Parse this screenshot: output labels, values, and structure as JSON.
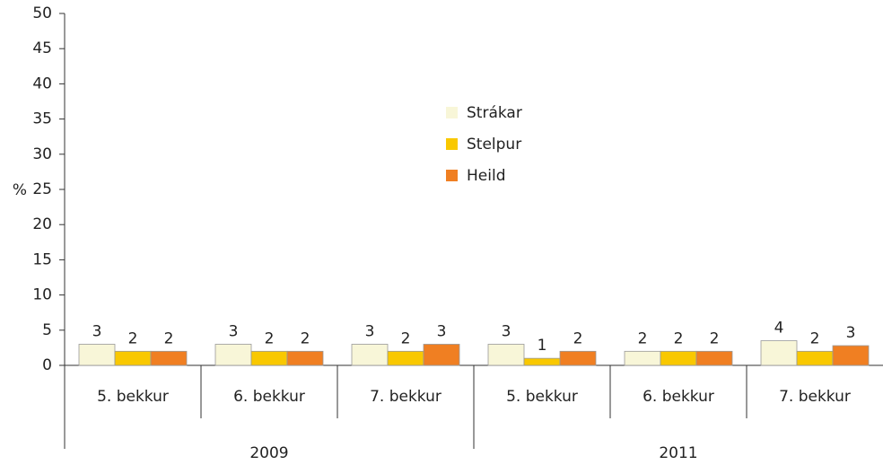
{
  "chart_data": {
    "type": "bar",
    "y_label": "%",
    "groups": [
      {
        "name": "2009",
        "categories": [
          "5. bekkur",
          "6. bekkur",
          "7. bekkur"
        ]
      },
      {
        "name": "2011",
        "categories": [
          "5. bekkur",
          "6. bekkur",
          "7. bekkur"
        ]
      }
    ],
    "series": [
      {
        "name": "Strákar",
        "color": "#f8f6d8",
        "values": [
          3,
          3,
          3,
          3,
          2,
          3.5
        ],
        "value_labels": [
          "3",
          "3",
          "3",
          "3",
          "2",
          "4"
        ]
      },
      {
        "name": "Stelpur",
        "color": "#f9c800",
        "values": [
          2,
          2,
          2,
          1,
          2,
          2
        ]
      },
      {
        "name": "Heild",
        "color": "#f07f22",
        "values": [
          2,
          2,
          3,
          2,
          2,
          2.8
        ],
        "value_labels": [
          "2",
          "2",
          "3",
          "2",
          "2",
          "3"
        ]
      }
    ],
    "ylim": [
      0,
      50
    ],
    "yticks": [
      0,
      5,
      10,
      15,
      20,
      25,
      30,
      35,
      40,
      45,
      50
    ]
  }
}
